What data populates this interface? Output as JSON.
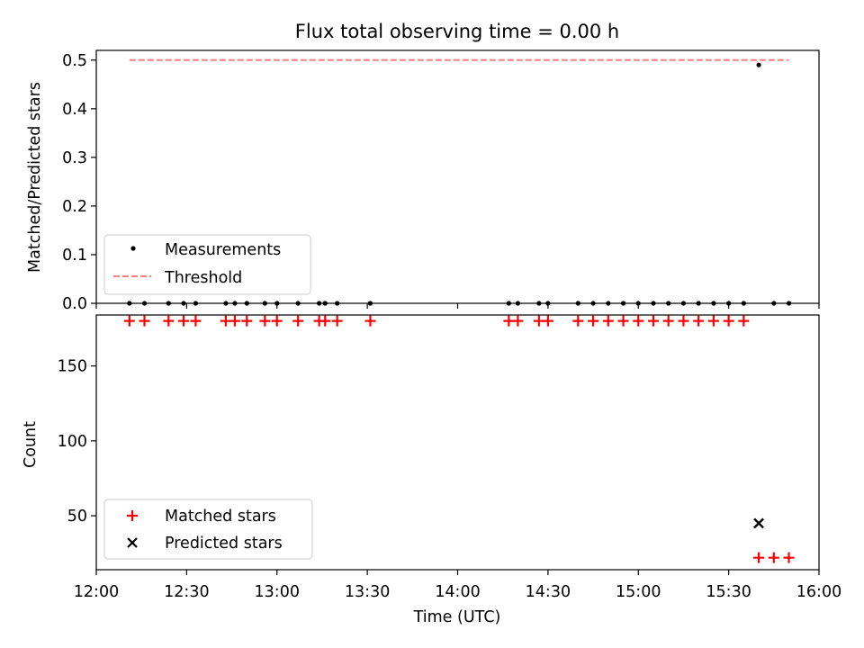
{
  "chart_data": [
    {
      "type": "scatter",
      "title": "Flux total observing time = 0.00 h",
      "xlabel": "",
      "ylabel": "Matched/Predicted stars",
      "ylim": [
        0.0,
        0.52
      ],
      "yticks": [
        0.0,
        0.1,
        0.2,
        0.3,
        0.4,
        0.5
      ],
      "ytick_labels": [
        "0.0",
        "0.1",
        "0.2",
        "0.3",
        "0.4",
        "0.5"
      ],
      "xlim": [
        "12:00",
        "16:00"
      ],
      "legend_position": "lower-left",
      "series": [
        {
          "name": "Measurements",
          "marker": "dot",
          "color": "#000000",
          "x": [
            "12:11",
            "12:16",
            "12:24",
            "12:29",
            "12:33",
            "12:43",
            "12:46",
            "12:50",
            "12:56",
            "13:00",
            "13:07",
            "13:14",
            "13:16",
            "13:20",
            "13:31",
            "14:17",
            "14:20",
            "14:27",
            "14:30",
            "14:40",
            "14:45",
            "14:50",
            "14:55",
            "15:00",
            "15:05",
            "15:10",
            "15:15",
            "15:20",
            "15:25",
            "15:30",
            "15:35",
            "15:40",
            "15:45",
            "15:50"
          ],
          "y": [
            0,
            0,
            0,
            0,
            0,
            0,
            0,
            0,
            0,
            0,
            0,
            0,
            0,
            0,
            0,
            0,
            0,
            0,
            0,
            0,
            0,
            0,
            0,
            0,
            0,
            0,
            0,
            0,
            0,
            0,
            0,
            0.49,
            0,
            0
          ]
        },
        {
          "name": "Threshold",
          "type": "line",
          "style": "dashed",
          "color": "#ff7f7f",
          "x": [
            "12:11",
            "15:50"
          ],
          "y": [
            0.5,
            0.5
          ]
        }
      ]
    },
    {
      "type": "scatter",
      "title": "",
      "xlabel": "Time (UTC)",
      "ylabel": "Count",
      "ylim": [
        14,
        184
      ],
      "yticks": [
        50,
        100,
        150
      ],
      "ytick_labels": [
        "50",
        "100",
        "150"
      ],
      "xlim": [
        "12:00",
        "16:00"
      ],
      "xticks": [
        "12:00",
        "12:30",
        "13:00",
        "13:30",
        "14:00",
        "14:30",
        "15:00",
        "15:30",
        "16:00"
      ],
      "legend_position": "lower-left",
      "series": [
        {
          "name": "Matched stars",
          "marker": "plus",
          "color": "#ff0000",
          "x": [
            "12:11",
            "12:16",
            "12:24",
            "12:29",
            "12:33",
            "12:43",
            "12:46",
            "12:50",
            "12:56",
            "13:00",
            "13:07",
            "13:14",
            "13:16",
            "13:20",
            "13:31",
            "14:17",
            "14:20",
            "14:27",
            "14:30",
            "14:40",
            "14:45",
            "14:50",
            "14:55",
            "15:00",
            "15:05",
            "15:10",
            "15:15",
            "15:20",
            "15:25",
            "15:30",
            "15:35",
            "15:40",
            "15:45",
            "15:50"
          ],
          "y": [
            180,
            180,
            180,
            180,
            180,
            180,
            180,
            180,
            180,
            180,
            180,
            180,
            180,
            180,
            180,
            180,
            180,
            180,
            180,
            180,
            180,
            180,
            180,
            180,
            180,
            180,
            180,
            180,
            180,
            180,
            180,
            22,
            22,
            22
          ]
        },
        {
          "name": "Predicted stars",
          "marker": "x",
          "color": "#000000",
          "x": [
            "15:40"
          ],
          "y": [
            45
          ]
        }
      ]
    }
  ]
}
